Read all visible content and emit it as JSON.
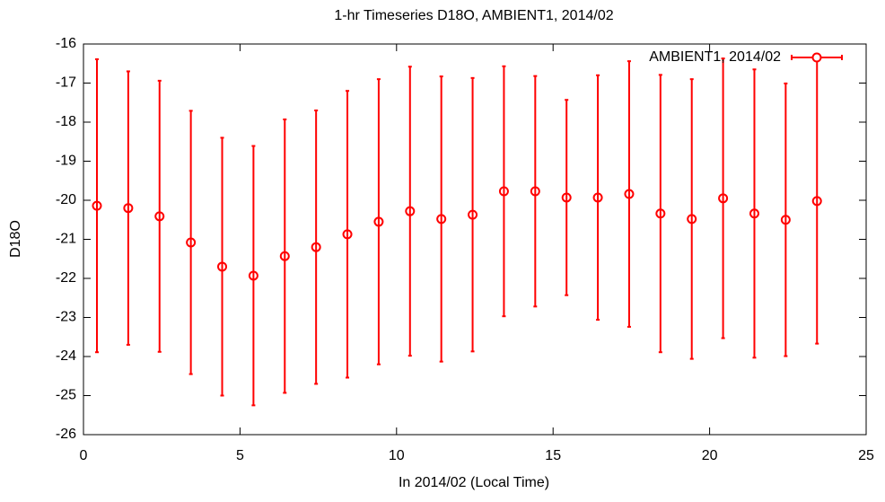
{
  "chart_data": {
    "type": "errorbar",
    "title": "1-hr Timeseries D18O, AMBIENT1, 2014/02",
    "x_label": "In 2014/02 (Local Time)",
    "y_label": "D18O",
    "xlim": [
      0,
      25
    ],
    "xticks": [
      0,
      5,
      10,
      15,
      20,
      25
    ],
    "ylim": [
      -26,
      -16
    ],
    "yticks": [
      -26,
      -25,
      -24,
      -23,
      -22,
      -21,
      -20,
      -19,
      -18,
      -17,
      -16
    ],
    "grid": false,
    "legend": "top-right",
    "series": [
      {
        "name": "AMBIENT1, 2014/02",
        "color": "#ff0000",
        "x": [
          0.43,
          1.43,
          2.43,
          3.43,
          4.43,
          5.43,
          6.43,
          7.43,
          8.43,
          9.43,
          10.43,
          11.43,
          12.43,
          13.43,
          14.43,
          15.43,
          16.43,
          17.43,
          18.43,
          19.43,
          20.43,
          21.43,
          22.43,
          23.43
        ],
        "values": [
          -20.14,
          -20.2,
          -20.41,
          -21.08,
          -21.7,
          -21.93,
          -21.43,
          -21.2,
          -20.87,
          -20.55,
          -20.28,
          -20.48,
          -20.37,
          -19.77,
          -19.77,
          -19.93,
          -19.93,
          -19.84,
          -20.34,
          -20.48,
          -19.95,
          -20.34,
          -20.5,
          -20.02
        ],
        "errors": [
          3.75,
          3.5,
          3.47,
          3.37,
          3.3,
          3.32,
          3.5,
          3.5,
          3.67,
          3.65,
          3.7,
          3.65,
          3.5,
          3.2,
          2.95,
          2.5,
          3.13,
          3.4,
          3.55,
          3.58,
          3.58,
          3.69,
          3.49,
          3.65
        ]
      }
    ]
  }
}
